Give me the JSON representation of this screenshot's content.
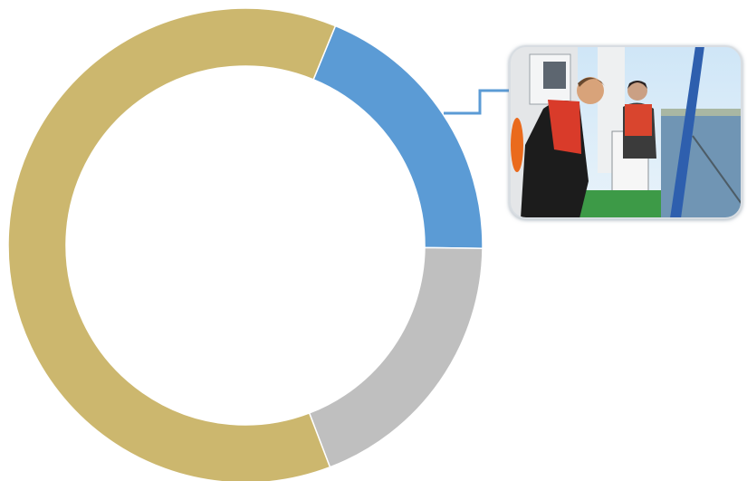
{
  "chart_data": {
    "type": "donut",
    "categories": [
      null,
      null,
      null
    ],
    "values": [
      19,
      19,
      62
    ],
    "colors": [
      "#5b9bd5",
      "#bfbfbf",
      "#ccb76e"
    ]
  }
}
